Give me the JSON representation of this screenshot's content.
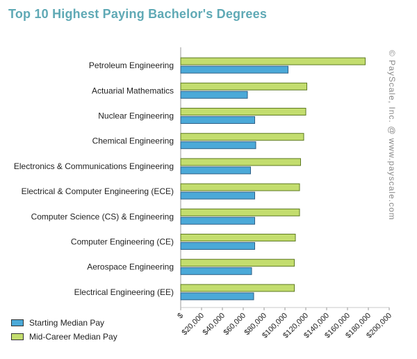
{
  "title": "Top 10 Highest Paying Bachelor's Degrees",
  "watermark": "© PayScale, Inc. @ www.payscale.com",
  "colors": {
    "starting": "#4ba9d8",
    "midcareer": "#c3dd6e",
    "title": "#5fa9b5"
  },
  "legend": [
    {
      "label": "Starting Median Pay",
      "color": "#4ba9d8"
    },
    {
      "label": "Mid-Career Median Pay",
      "color": "#c3dd6e"
    }
  ],
  "chart_data": {
    "type": "bar",
    "orientation": "horizontal",
    "title": "Top 10 Highest Paying Bachelor's Degrees",
    "categories": [
      "Petroleum Engineering",
      "Actuarial Mathematics",
      "Nuclear Engineering",
      "Chemical Engineering",
      "Electronics & Communications Engineering",
      "Electrical & Computer Engineering (ECE)",
      "Computer Science (CS) & Engineering",
      "Computer Engineering (CE)",
      "Aerospace Engineering",
      "Electrical Engineering (EE)"
    ],
    "series": [
      {
        "name": "Starting Median Pay",
        "values": [
          103000,
          64000,
          71000,
          72000,
          67000,
          71000,
          71000,
          71000,
          68000,
          70000
        ]
      },
      {
        "name": "Mid-Career Median Pay",
        "values": [
          177000,
          121000,
          120000,
          118000,
          115000,
          114000,
          114000,
          110000,
          109000,
          109000
        ]
      }
    ],
    "xlim": [
      0,
      200000
    ],
    "xticks": [
      "$",
      "$20,000",
      "$40,000",
      "$60,000",
      "$80,000",
      "$100,000",
      "$120,000",
      "$140,000",
      "$160,000",
      "$180,000",
      "$200,000"
    ],
    "legend_position": "bottom-left",
    "grid": false
  }
}
